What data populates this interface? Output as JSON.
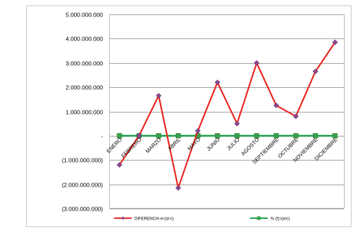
{
  "chart_data": {
    "type": "line",
    "title": "",
    "xlabel": "",
    "ylabel": "",
    "categories": [
      "ENERO",
      "FEBRERO",
      "MARZO",
      "ABRIL",
      "MAYO",
      "JUNIO",
      "JULIO",
      "AGOSTO",
      "SEPTIEMBRE",
      "OCTUBRE",
      "NOVIEMBRE",
      "DICIEMBRE"
    ],
    "ylim": [
      -3000000000,
      5000000000
    ],
    "yticks": [
      {
        "value": 5000000000,
        "label": "5.000.000.000"
      },
      {
        "value": 4000000000,
        "label": "4.000.000.000"
      },
      {
        "value": 3000000000,
        "label": "3.000.000.000"
      },
      {
        "value": 2000000000,
        "label": "2.000.000.000"
      },
      {
        "value": 1000000000,
        "label": "1.000.000.000"
      },
      {
        "value": 0,
        "label": "-"
      },
      {
        "value": -1000000000,
        "label": "(1.000.000.000)"
      },
      {
        "value": -2000000000,
        "label": "(2.000.000.000)"
      },
      {
        "value": -3000000000,
        "label": "(3.000.000.000)"
      }
    ],
    "grid": "horizontal",
    "legend_position": "bottom",
    "series": [
      {
        "name": "DIFERENCIA e=(d-c)",
        "color": "#e8251f",
        "marker": "diamond",
        "marker_color": "#8b4a8f",
        "values": [
          -1200000000,
          0,
          1650000000,
          -2150000000,
          200000000,
          2200000000,
          500000000,
          3000000000,
          1250000000,
          800000000,
          2650000000,
          3850000000
        ]
      },
      {
        "name": "% (f)=(e/c)",
        "color": "#1aa046",
        "marker": "square",
        "marker_color": "#3aa04a",
        "values": [
          0,
          0,
          0,
          0,
          0,
          0,
          0,
          0,
          0,
          0,
          0,
          0
        ]
      }
    ]
  }
}
